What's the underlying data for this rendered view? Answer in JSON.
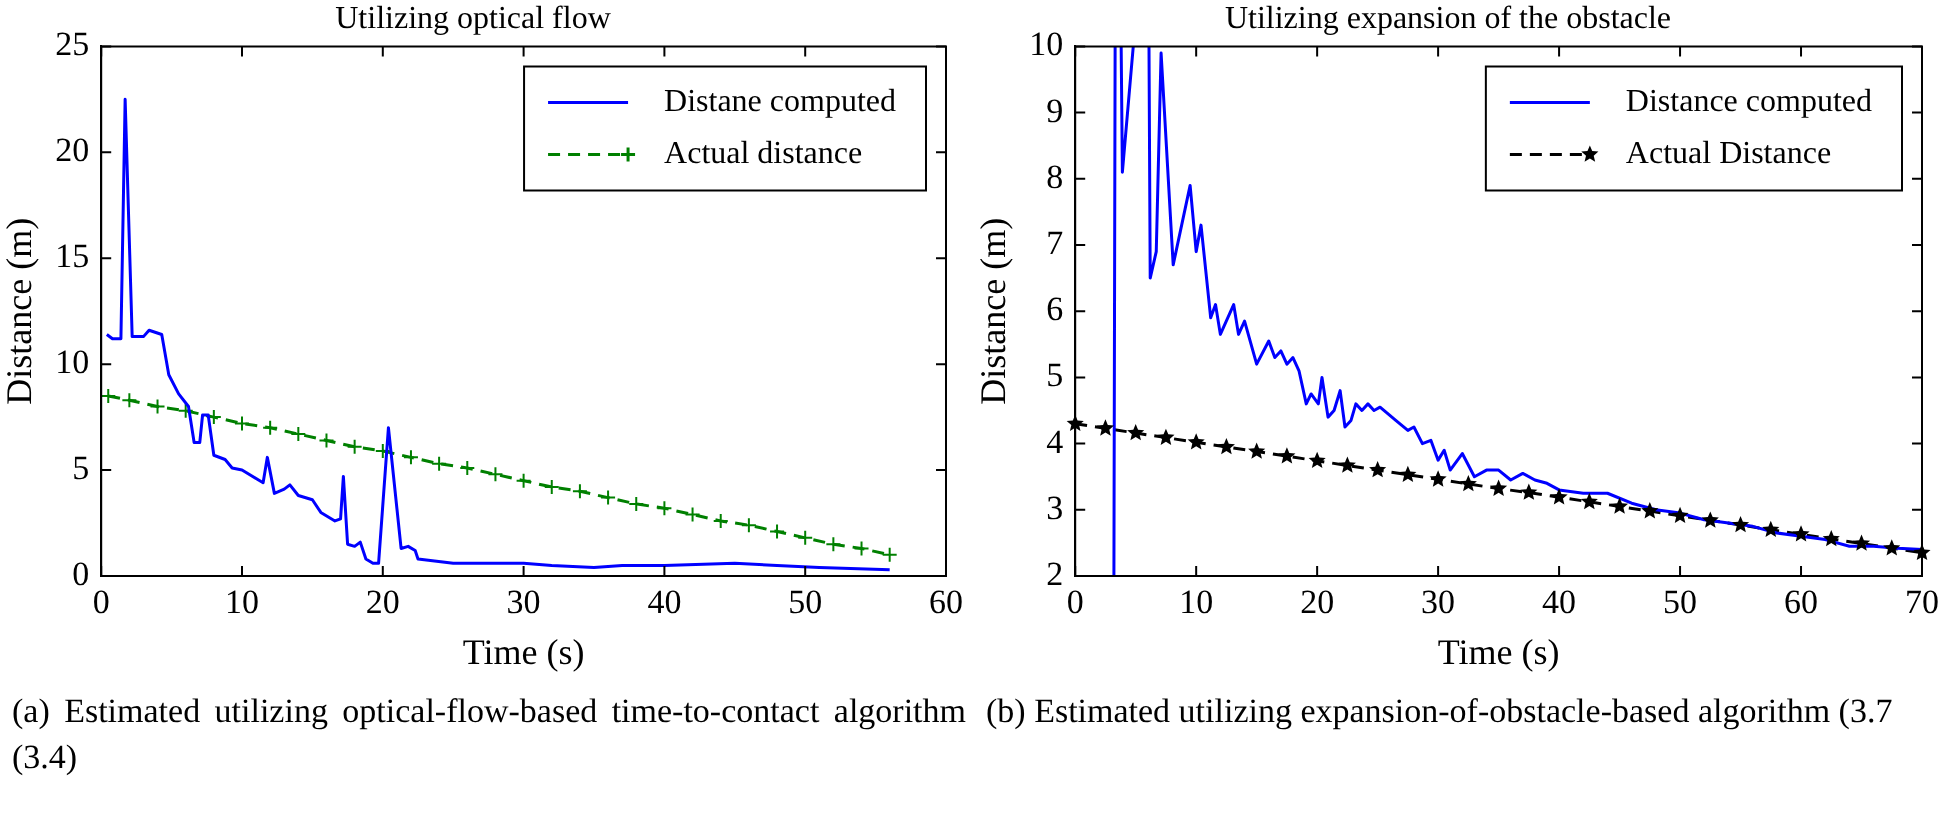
{
  "chart_data": [
    {
      "type": "line",
      "title": "Utilizing optical flow",
      "xlabel": "Time (s)",
      "ylabel": "Distance (m)",
      "xlim": [
        0,
        60
      ],
      "xticks": [
        0,
        10,
        20,
        30,
        40,
        50,
        60
      ],
      "ylim": [
        0,
        25
      ],
      "yticks": [
        0,
        5,
        10,
        15,
        20,
        25
      ],
      "grid": false,
      "legend": "top right",
      "annotations": [
        "(a) Estimated utilizing optical-flow-based time-to-contact algorithm (3.4)"
      ],
      "series": [
        {
          "name": "Distane computed",
          "color": "#0000ff",
          "line_style": "solid",
          "marker": "none",
          "x": [
            0.4,
            0.8,
            1.4,
            1.7,
            2.2,
            3.0,
            3.4,
            4.3,
            4.8,
            5.5,
            6.2,
            6.6,
            7.0,
            7.2,
            7.6,
            8.0,
            8.8,
            9.3,
            10,
            11.5,
            11.8,
            12.3,
            13.0,
            13.4,
            14.0,
            15.0,
            15.6,
            16.6,
            17.0,
            17.2,
            17.5,
            18.0,
            18.4,
            18.8,
            19.3,
            19.7,
            20.4,
            21.3,
            21.8,
            22.3,
            22.5,
            25,
            27,
            30,
            32,
            35,
            37,
            40,
            45,
            48,
            51,
            56
          ],
          "values": [
            11.4,
            11.2,
            11.2,
            22.5,
            11.3,
            11.3,
            11.6,
            11.4,
            9.5,
            8.6,
            8.0,
            6.3,
            6.3,
            7.6,
            7.6,
            5.7,
            5.5,
            5.1,
            5.0,
            4.4,
            5.6,
            3.9,
            4.1,
            4.3,
            3.8,
            3.6,
            3.0,
            2.6,
            2.7,
            4.7,
            1.5,
            1.4,
            1.6,
            0.8,
            0.6,
            0.6,
            7.0,
            1.3,
            1.4,
            1.2,
            0.8,
            0.6,
            0.6,
            0.6,
            0.5,
            0.4,
            0.5,
            0.5,
            0.6,
            0.5,
            0.4,
            0.3
          ]
        },
        {
          "name": "Actual distance",
          "color": "#008000",
          "line_style": "dashed",
          "marker": "cross",
          "x": [
            0.5,
            2,
            4,
            6,
            8,
            10,
            12,
            14,
            16,
            18,
            20,
            22,
            24,
            26,
            28,
            30,
            32,
            34,
            36,
            38,
            40,
            42,
            44,
            46,
            48,
            50,
            52,
            54,
            56
          ],
          "values": [
            8.5,
            8.3,
            8.0,
            7.8,
            7.5,
            7.2,
            7.0,
            6.7,
            6.4,
            6.1,
            5.9,
            5.6,
            5.3,
            5.1,
            4.8,
            4.5,
            4.2,
            4.0,
            3.7,
            3.4,
            3.2,
            2.9,
            2.6,
            2.4,
            2.1,
            1.8,
            1.5,
            1.3,
            1.0
          ]
        }
      ]
    },
    {
      "type": "line",
      "title": "Utilizing expansion of the obstacle",
      "xlabel": "Time (s)",
      "ylabel": "Distance (m)",
      "xlim": [
        0,
        70
      ],
      "xticks": [
        0,
        10,
        20,
        30,
        40,
        50,
        60,
        70
      ],
      "ylim": [
        2,
        10
      ],
      "yticks": [
        2,
        3,
        4,
        5,
        6,
        7,
        8,
        9,
        10
      ],
      "grid": false,
      "legend": "top right",
      "annotations": [
        "(b) Estimated utilizing expansion-of-obstacle-based algorithm (3.7"
      ],
      "series": [
        {
          "name": "Distance computed",
          "color": "#0000ff",
          "line_style": "solid",
          "marker": "none",
          "x": [
            3.2,
            3.3,
            3.5,
            3.8,
            3.9,
            4.8,
            5.5,
            6.1,
            6.2,
            6.7,
            7.1,
            8.1,
            9.5,
            10.0,
            10.4,
            11.2,
            11.6,
            12.0,
            13.1,
            13.5,
            14.0,
            15.0,
            16.0,
            16.5,
            17.0,
            17.5,
            18.0,
            18.5,
            19.1,
            19.5,
            20.1,
            20.4,
            20.9,
            21.4,
            21.9,
            22.3,
            22.8,
            23.2,
            23.7,
            24.2,
            24.7,
            25.2,
            26.5,
            27.5,
            28.0,
            28.7,
            29.4,
            30.0,
            30.5,
            31.0,
            32.0,
            33.0,
            34.0,
            35.0,
            36.0,
            37.0,
            38.0,
            39.0,
            40.0,
            42.0,
            44.0,
            46.0,
            48.0,
            50.0,
            52.0,
            54.0,
            56.0,
            58.0,
            60.0,
            62.0,
            64.0,
            66.0,
            68.0,
            70.0
          ],
          "values": [
            2.0,
            10.0,
            null,
            10.0,
            8.1,
            10.0,
            null,
            10.0,
            6.5,
            6.9,
            9.9,
            6.7,
            7.9,
            6.9,
            7.3,
            5.9,
            6.1,
            5.65,
            6.1,
            5.65,
            5.85,
            5.2,
            5.55,
            5.3,
            5.4,
            5.2,
            5.3,
            5.1,
            4.6,
            4.75,
            4.6,
            5.0,
            4.4,
            4.5,
            4.8,
            4.25,
            4.35,
            4.6,
            4.5,
            4.6,
            4.5,
            4.55,
            4.35,
            4.2,
            4.25,
            4.0,
            4.05,
            3.75,
            3.9,
            3.6,
            3.85,
            3.5,
            3.6,
            3.6,
            3.45,
            3.55,
            3.45,
            3.4,
            3.3,
            3.25,
            3.25,
            3.1,
            3.0,
            2.95,
            2.85,
            2.8,
            2.75,
            2.65,
            2.6,
            2.55,
            2.45,
            2.45,
            2.42,
            2.4
          ]
        },
        {
          "name": "Actual Distance",
          "color": "#000000",
          "line_style": "dashed",
          "marker": "star",
          "x": [
            0,
            2.5,
            5,
            7.5,
            10,
            12.5,
            15,
            17.5,
            20,
            22.5,
            25,
            27.5,
            30,
            32.5,
            35,
            37.5,
            40,
            42.5,
            45,
            47.5,
            50,
            52.5,
            55,
            57.5,
            60,
            62.5,
            65,
            67.5,
            70
          ],
          "values": [
            4.3,
            4.23,
            4.16,
            4.09,
            4.02,
            3.95,
            3.88,
            3.81,
            3.74,
            3.67,
            3.6,
            3.53,
            3.46,
            3.39,
            3.32,
            3.26,
            3.19,
            3.12,
            3.05,
            2.98,
            2.91,
            2.84,
            2.77,
            2.7,
            2.63,
            2.56,
            2.49,
            2.42,
            2.35
          ]
        }
      ]
    }
  ]
}
